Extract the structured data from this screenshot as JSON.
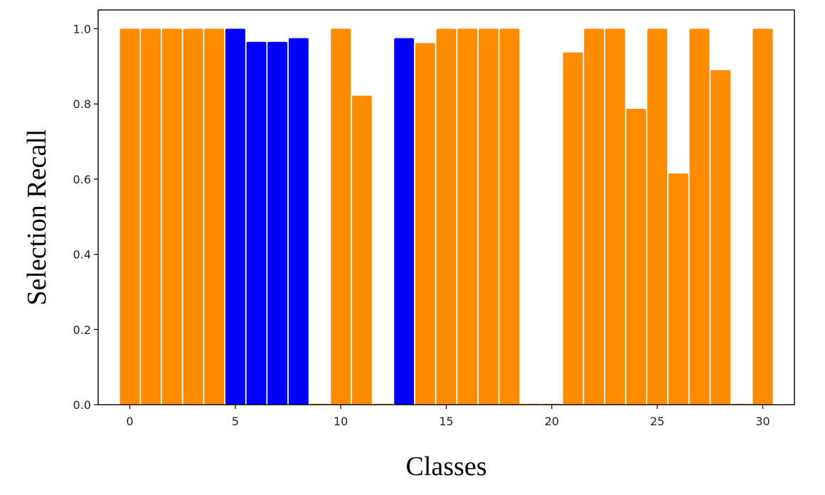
{
  "chart_data": {
    "type": "bar",
    "title": "",
    "xlabel": "Classes",
    "ylabel": "Selection Recall",
    "xlim": [
      -1.5,
      31.5
    ],
    "ylim": [
      0,
      1.05
    ],
    "x_ticks": [
      0,
      5,
      10,
      15,
      20,
      25,
      30
    ],
    "y_ticks": [
      0.0,
      0.2,
      0.4,
      0.6,
      0.8,
      1.0
    ],
    "y_tick_labels": [
      "0.0",
      "0.2",
      "0.4",
      "0.6",
      "0.8",
      "1.0"
    ],
    "grid": false,
    "legend": "none",
    "colors": {
      "orange": "#ff8c00",
      "blue": "#0000ff",
      "axis": "#000000"
    },
    "x": [
      0,
      1,
      2,
      3,
      4,
      5,
      6,
      7,
      8,
      9,
      10,
      11,
      12,
      13,
      14,
      15,
      16,
      17,
      18,
      19,
      20,
      21,
      22,
      23,
      24,
      25,
      26,
      27,
      28,
      29,
      30
    ],
    "values": [
      1.0,
      1.0,
      1.0,
      1.0,
      1.0,
      1.0,
      0.965,
      0.965,
      0.975,
      0.0,
      1.0,
      0.822,
      0.0,
      0.975,
      0.962,
      1.0,
      1.0,
      1.0,
      1.0,
      0.0,
      0.0,
      0.937,
      1.0,
      1.0,
      0.787,
      1.0,
      0.615,
      1.0,
      0.89,
      0.0,
      1.0
    ],
    "bar_colors": [
      "orange",
      "orange",
      "orange",
      "orange",
      "orange",
      "blue",
      "blue",
      "blue",
      "blue",
      "orange",
      "orange",
      "orange",
      "orange",
      "blue",
      "orange",
      "orange",
      "orange",
      "orange",
      "orange",
      "orange",
      "orange",
      "orange",
      "orange",
      "orange",
      "orange",
      "orange",
      "orange",
      "orange",
      "orange",
      "orange",
      "orange"
    ]
  }
}
